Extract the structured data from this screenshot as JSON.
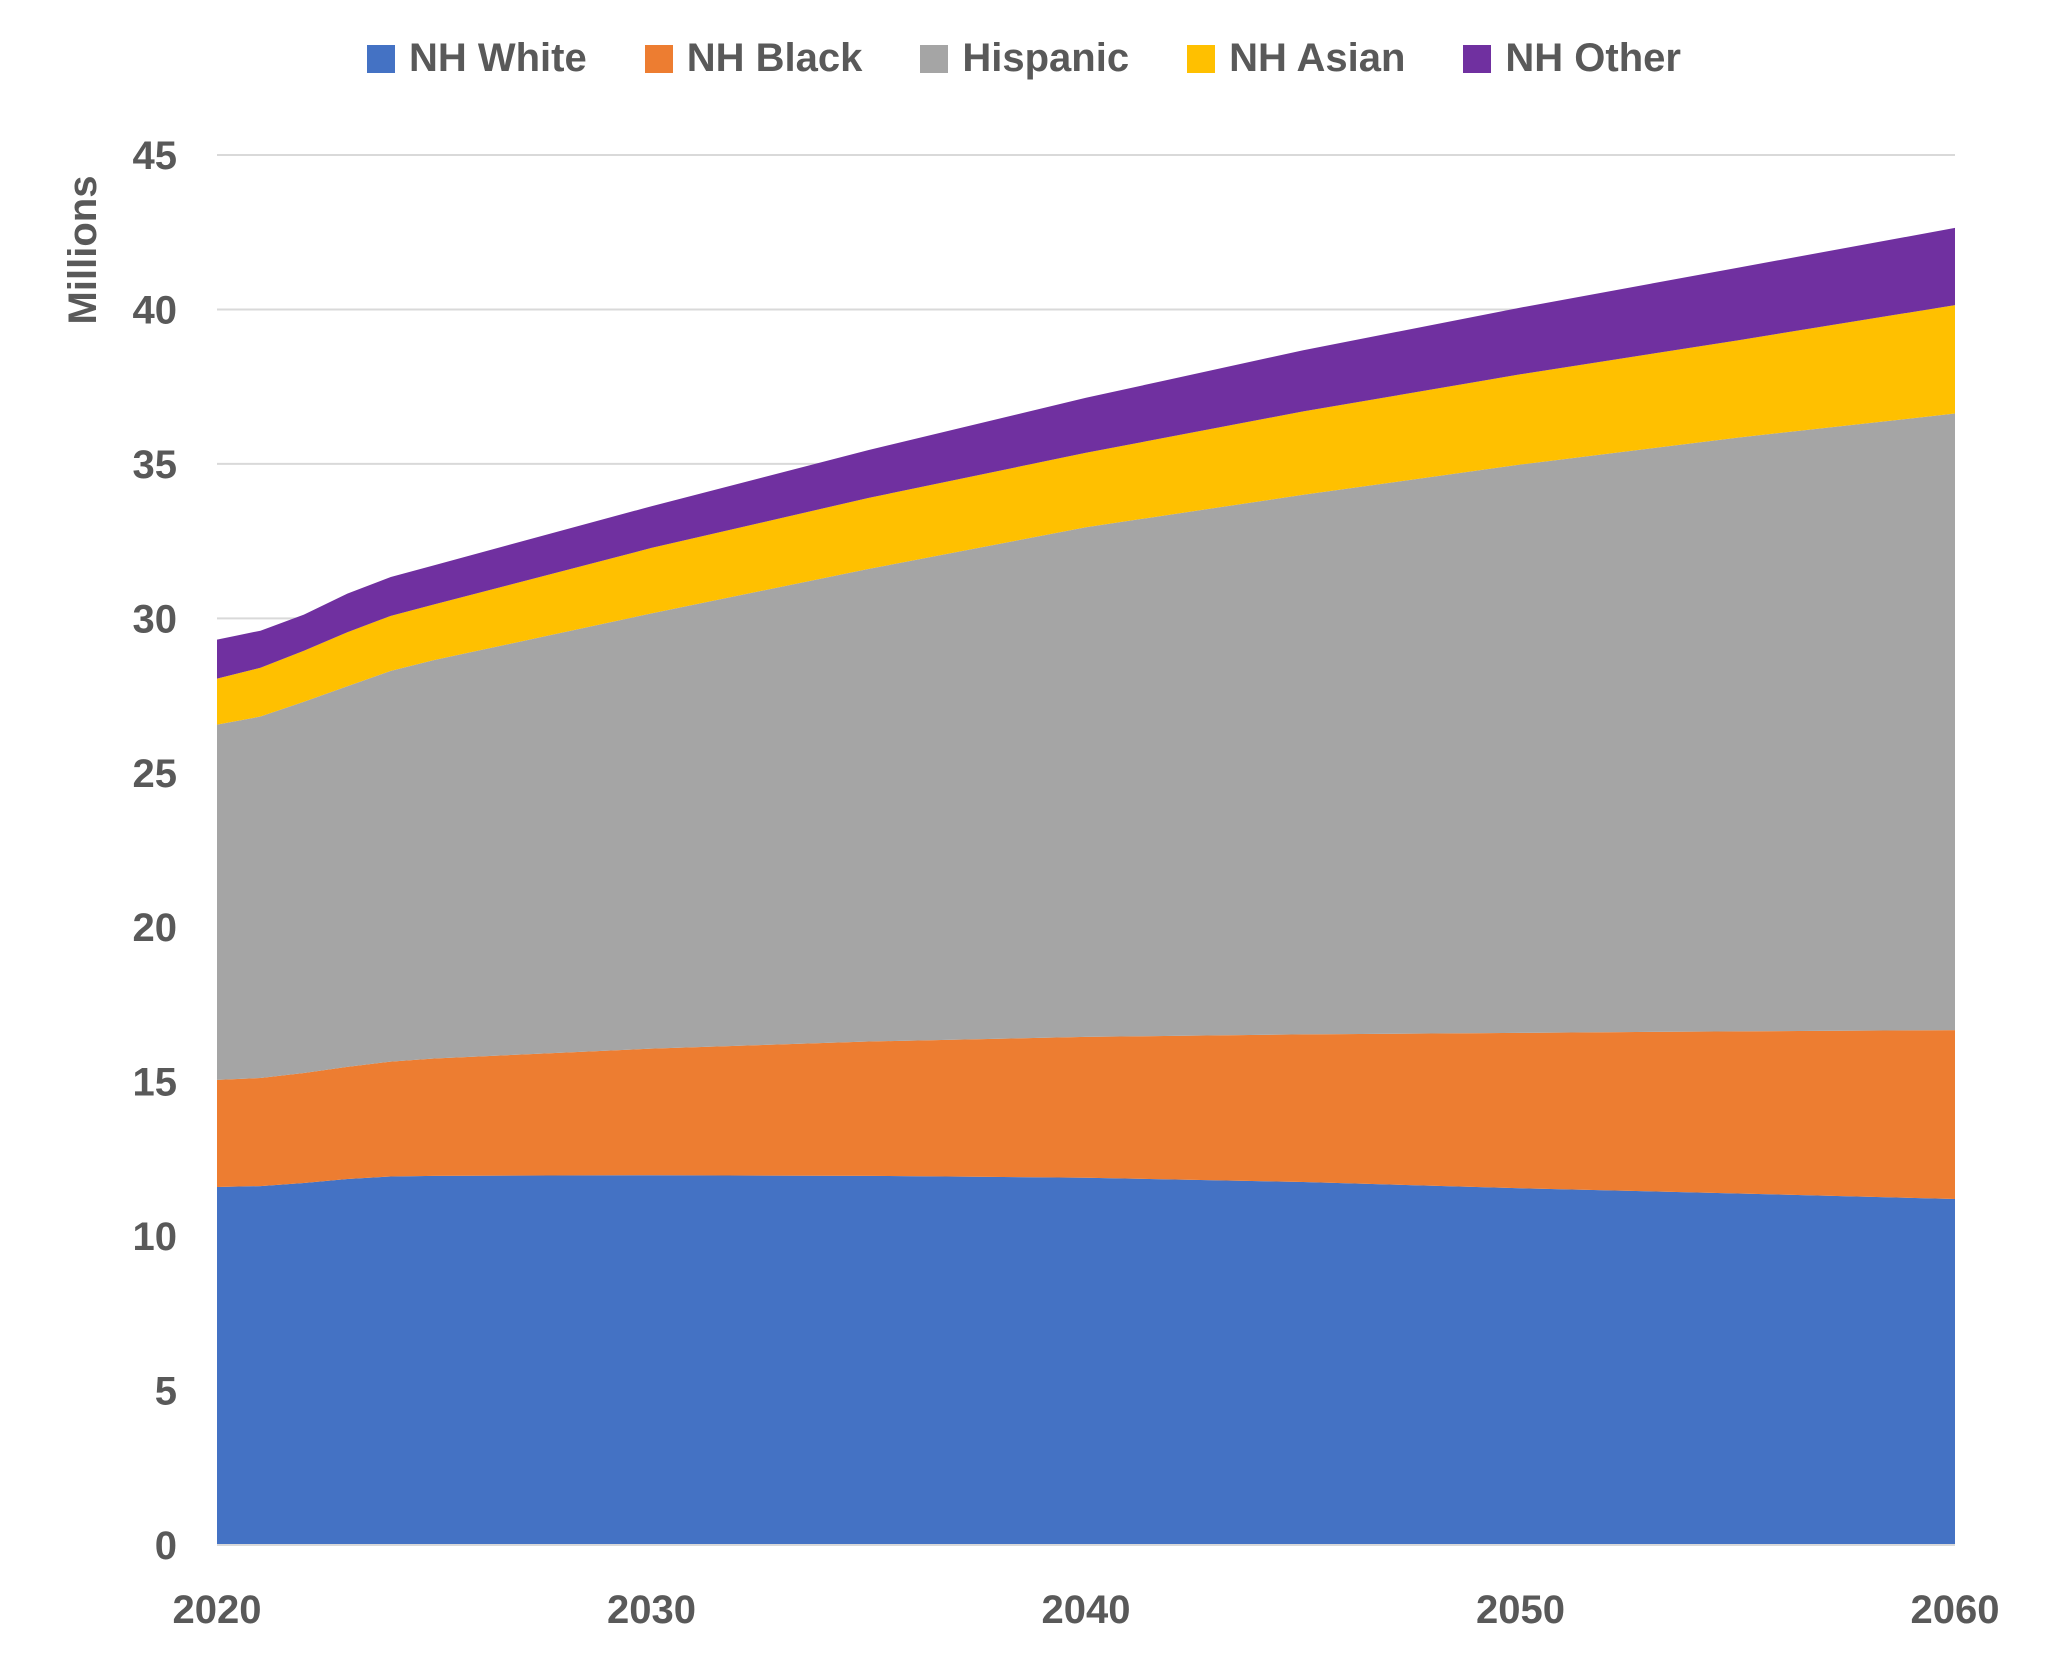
{
  "chart_data": {
    "type": "area",
    "stacked": true,
    "title": "",
    "xlabel": "",
    "ylabel": "Millions",
    "xlim": [
      2020,
      2060
    ],
    "ylim": [
      0,
      45
    ],
    "x_ticks": [
      "2020",
      "2030",
      "2040",
      "2050",
      "2060"
    ],
    "y_ticks": [
      "0",
      "5",
      "10",
      "15",
      "20",
      "25",
      "30",
      "35",
      "40",
      "45"
    ],
    "grid": "horizontal",
    "legend_position": "top",
    "x": [
      2020,
      2021,
      2022,
      2023,
      2024,
      2025,
      2030,
      2035,
      2040,
      2045,
      2050,
      2055,
      2060
    ],
    "series": [
      {
        "name": "NH White",
        "color": "#4472C4",
        "values": [
          11.59,
          11.62,
          11.72,
          11.85,
          11.93,
          11.95,
          11.97,
          11.95,
          11.89,
          11.75,
          11.55,
          11.38,
          11.2
        ]
      },
      {
        "name": "NH Black",
        "color": "#ED7D31",
        "values": [
          3.47,
          3.5,
          3.56,
          3.63,
          3.72,
          3.8,
          4.1,
          4.35,
          4.56,
          4.78,
          5.03,
          5.25,
          5.47
        ]
      },
      {
        "name": "Hispanic",
        "color": "#A5A5A5",
        "values": [
          11.5,
          11.7,
          12.02,
          12.32,
          12.65,
          12.9,
          14.09,
          15.3,
          16.5,
          17.47,
          18.4,
          19.22,
          19.96
        ]
      },
      {
        "name": "NH Asian",
        "color": "#FFC000",
        "values": [
          1.49,
          1.58,
          1.65,
          1.75,
          1.78,
          1.8,
          2.12,
          2.3,
          2.41,
          2.7,
          2.92,
          3.15,
          3.51
        ]
      },
      {
        "name": "NH Other",
        "color": "#7030A0",
        "values": [
          1.26,
          1.2,
          1.17,
          1.25,
          1.26,
          1.27,
          1.35,
          1.55,
          1.78,
          1.98,
          2.16,
          2.35,
          2.5
        ]
      }
    ]
  }
}
